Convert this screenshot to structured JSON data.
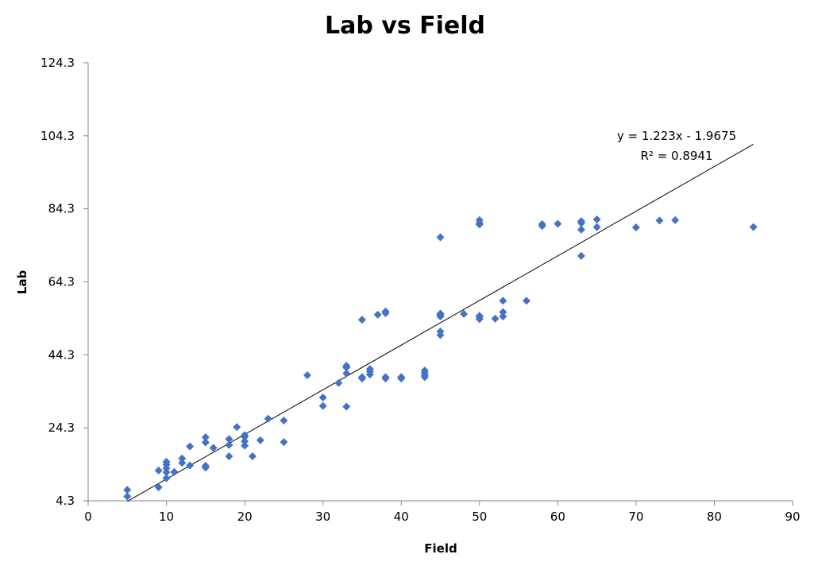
{
  "chart_data": {
    "type": "scatter",
    "title": "Lab vs Field",
    "xlabel": "Field",
    "ylabel": "Lab",
    "xlim": [
      0,
      90
    ],
    "ylim": [
      4.3,
      124.3
    ],
    "x_ticks": [
      "0",
      "10",
      "20",
      "30",
      "40",
      "50",
      "60",
      "70",
      "80",
      "90"
    ],
    "y_ticks": [
      "4.3",
      "24.3",
      "44.3",
      "64.3",
      "84.3",
      "104.3",
      "124.3"
    ],
    "grid": false,
    "marker_color": "#4472C4",
    "trendline": {
      "slope": 1.223,
      "intercept": -1.9675,
      "x_range": [
        5,
        85
      ],
      "equation_label": "y = 1.223x - 1.9675",
      "r2_label": "R² = 0.8941",
      "color": "#000000"
    },
    "points": [
      [
        5,
        5.5
      ],
      [
        5,
        7.3
      ],
      [
        9,
        8.0
      ],
      [
        9,
        12.6
      ],
      [
        10,
        10.5
      ],
      [
        10,
        12.1
      ],
      [
        10,
        13.2
      ],
      [
        10,
        14.2
      ],
      [
        10,
        15.0
      ],
      [
        11,
        12.2
      ],
      [
        12,
        14.7
      ],
      [
        12,
        15.9
      ],
      [
        13,
        14.0
      ],
      [
        13,
        19.2
      ],
      [
        15,
        13.4
      ],
      [
        15,
        13.9
      ],
      [
        15,
        20.3
      ],
      [
        15,
        21.7
      ],
      [
        16,
        18.8
      ],
      [
        18,
        16.5
      ],
      [
        18,
        19.6
      ],
      [
        18,
        21.2
      ],
      [
        19,
        24.5
      ],
      [
        20,
        19.4
      ],
      [
        20,
        20.6
      ],
      [
        20,
        21.8
      ],
      [
        20,
        22.3
      ],
      [
        21,
        16.5
      ],
      [
        22,
        20.9
      ],
      [
        23,
        26.8
      ],
      [
        25,
        20.4
      ],
      [
        25,
        26.3
      ],
      [
        28,
        38.7
      ],
      [
        30,
        30.3
      ],
      [
        30,
        32.6
      ],
      [
        32,
        36.6
      ],
      [
        33,
        30.1
      ],
      [
        33,
        39.2
      ],
      [
        33,
        40.8
      ],
      [
        33,
        41.3
      ],
      [
        35,
        37.8
      ],
      [
        35,
        38.2
      ],
      [
        35,
        53.9
      ],
      [
        36,
        38.9
      ],
      [
        36,
        39.7
      ],
      [
        36,
        40.4
      ],
      [
        37,
        55.3
      ],
      [
        38,
        37.8
      ],
      [
        38,
        38.2
      ],
      [
        38,
        55.7
      ],
      [
        38,
        56.2
      ],
      [
        40,
        37.8
      ],
      [
        40,
        38.2
      ],
      [
        43,
        38.2
      ],
      [
        43,
        38.7
      ],
      [
        43,
        39.4
      ],
      [
        43,
        40.0
      ],
      [
        45,
        49.7
      ],
      [
        45,
        50.7
      ],
      [
        45,
        54.8
      ],
      [
        45,
        55.2
      ],
      [
        45,
        55.6
      ],
      [
        45,
        76.5
      ],
      [
        48,
        55.5
      ],
      [
        50,
        54.1
      ],
      [
        50,
        54.7
      ],
      [
        50,
        55.0
      ],
      [
        50,
        80.0
      ],
      [
        50,
        80.4
      ],
      [
        50,
        81.2
      ],
      [
        52,
        54.2
      ],
      [
        53,
        54.8
      ],
      [
        53,
        56.0
      ],
      [
        53,
        59.1
      ],
      [
        56,
        59.1
      ],
      [
        58,
        79.6
      ],
      [
        58,
        80.1
      ],
      [
        60,
        80.2
      ],
      [
        63,
        71.4
      ],
      [
        63,
        78.6
      ],
      [
        63,
        80.4
      ],
      [
        63,
        80.9
      ],
      [
        65,
        79.3
      ],
      [
        65,
        81.4
      ],
      [
        70,
        79.2
      ],
      [
        73,
        81.1
      ],
      [
        75,
        81.2
      ],
      [
        85,
        79.3
      ]
    ]
  }
}
